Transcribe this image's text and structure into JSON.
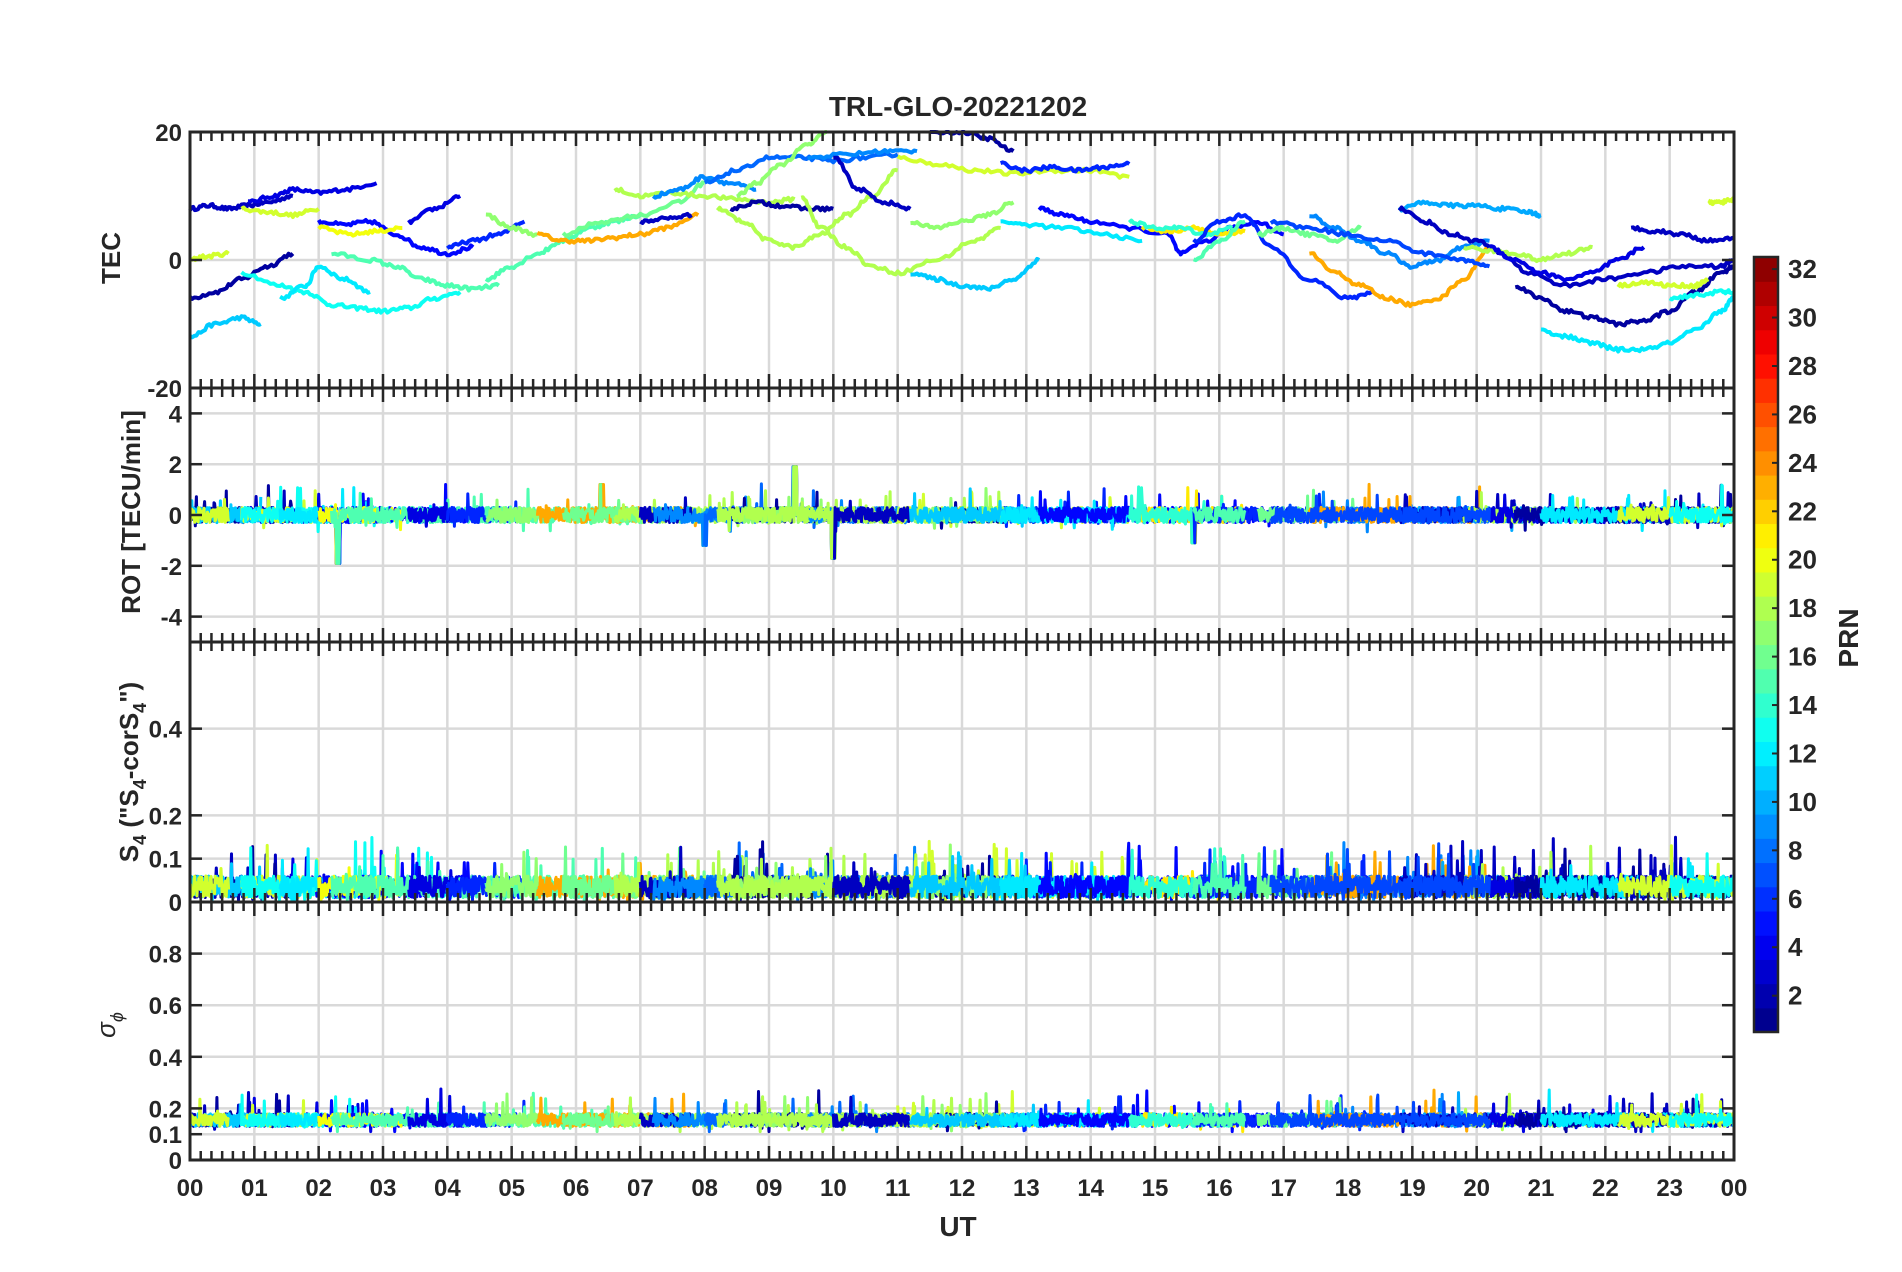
{
  "figure": {
    "title": "TRL-GLO-20221202",
    "xlabel": "UT"
  },
  "colorbar": {
    "label": "PRN",
    "range": [
      1,
      32
    ],
    "ticks": [
      "2",
      "4",
      "6",
      "8",
      "10",
      "12",
      "14",
      "16",
      "18",
      "20",
      "22",
      "24",
      "26",
      "28",
      "30",
      "32"
    ],
    "colormap": "jet",
    "levels": 32
  },
  "chart_data": [
    {
      "type": "line",
      "panel": "tec",
      "ylabel": "TEC",
      "ylim": [
        -20,
        20
      ],
      "yticks": [
        "-20",
        "0",
        "20"
      ],
      "xlim": [
        0,
        24
      ],
      "xticks": [
        "00",
        "01",
        "02",
        "03",
        "04",
        "05",
        "06",
        "07",
        "08",
        "09",
        "10",
        "11",
        "12",
        "13",
        "14",
        "15",
        "16",
        "17",
        "18",
        "19",
        "20",
        "21",
        "22",
        "23",
        "00"
      ],
      "series": [
        {
          "prn": 3,
          "x": [
            0.0,
            0.3,
            0.6,
            0.9,
            1.2,
            1.6
          ],
          "y": [
            8,
            8.5,
            8,
            8.5,
            9,
            10
          ]
        },
        {
          "prn": 2,
          "x": [
            0.0,
            0.4,
            0.8,
            1.2,
            1.6
          ],
          "y": [
            -6,
            -5,
            -3,
            -1,
            1
          ]
        },
        {
          "prn": 4,
          "x": [
            0.9,
            1.3,
            1.6,
            2.0,
            2.4,
            2.9
          ],
          "y": [
            9,
            10,
            11,
            10.5,
            11,
            12
          ]
        },
        {
          "prn": 11,
          "x": [
            0.0,
            0.4,
            0.8,
            1.1
          ],
          "y": [
            -12,
            -10,
            -9,
            -10
          ]
        },
        {
          "prn": 19,
          "x": [
            0.0,
            0.2,
            0.6
          ],
          "y": [
            0,
            0.5,
            1
          ]
        },
        {
          "prn": 19,
          "x": [
            0.8,
            1.2,
            1.6,
            2.0
          ],
          "y": [
            8,
            7.5,
            7,
            8
          ]
        },
        {
          "prn": 13,
          "x": [
            0.8,
            1.4,
            1.8,
            2.2,
            2.6,
            3.0,
            3.4,
            3.8,
            4.2
          ],
          "y": [
            -2,
            -4,
            -5,
            -7,
            -7.5,
            -8,
            -7.5,
            -6,
            -5
          ]
        },
        {
          "prn": 12,
          "x": [
            1.4,
            1.8,
            2.0,
            2.4,
            2.8
          ],
          "y": [
            -6,
            -4,
            -1,
            -3,
            -5
          ]
        },
        {
          "prn": 5,
          "x": [
            2.0,
            2.4,
            2.8,
            3.2,
            3.6,
            4.0,
            4.4
          ],
          "y": [
            6,
            5.5,
            6,
            4,
            2,
            1,
            2
          ]
        },
        {
          "prn": 20,
          "x": [
            2.0,
            2.5,
            2.9,
            3.3
          ],
          "y": [
            5,
            4,
            4.5,
            5
          ]
        },
        {
          "prn": 15,
          "x": [
            2.2,
            2.8,
            3.2,
            3.6,
            4.0,
            4.4,
            4.8
          ],
          "y": [
            1,
            0,
            -1,
            -3,
            -4,
            -4.5,
            -4
          ]
        },
        {
          "prn": 4,
          "x": [
            3.4,
            3.8,
            4.2
          ],
          "y": [
            6,
            8,
            10
          ]
        },
        {
          "prn": 6,
          "x": [
            4.0,
            4.4,
            4.8,
            5.2
          ],
          "y": [
            2,
            3,
            4,
            6
          ]
        },
        {
          "prn": 15,
          "x": [
            4.6,
            5.0,
            5.4,
            5.8,
            6.2,
            6.6,
            7.0
          ],
          "y": [
            -3,
            -1,
            1,
            3,
            5,
            6,
            7
          ]
        },
        {
          "prn": 17,
          "x": [
            4.6,
            5.0,
            5.4
          ],
          "y": [
            7,
            5,
            4
          ]
        },
        {
          "prn": 23,
          "x": [
            5.4,
            5.8,
            6.2,
            6.6,
            7.0,
            7.4,
            7.9
          ],
          "y": [
            4,
            3,
            3,
            3.5,
            4,
            5,
            7
          ]
        },
        {
          "prn": 16,
          "x": [
            5.8,
            6.4,
            7.0,
            7.6,
            8.0
          ],
          "y": [
            4,
            6,
            7,
            9,
            12
          ]
        },
        {
          "prn": 18,
          "x": [
            6.6,
            7.0,
            7.5,
            8.0,
            8.5,
            9.0,
            9.4
          ],
          "y": [
            11,
            10,
            10.5,
            10,
            9.5,
            9,
            9.5
          ]
        },
        {
          "prn": 3,
          "x": [
            7.0,
            7.4,
            7.8
          ],
          "y": [
            6,
            6.5,
            7
          ]
        },
        {
          "prn": 9,
          "x": [
            7.2,
            7.6,
            8.0,
            8.4,
            8.8
          ],
          "y": [
            10,
            11,
            13,
            12,
            11
          ]
        },
        {
          "prn": 8,
          "x": [
            8.0,
            8.5,
            9.0,
            9.5,
            10.0,
            10.5,
            11.0
          ],
          "y": [
            12,
            14,
            16,
            16,
            15.5,
            16,
            16.5
          ]
        },
        {
          "prn": 2,
          "x": [
            8.4,
            8.8,
            9.2,
            9.6,
            10.0
          ],
          "y": [
            8,
            9,
            8.5,
            8,
            8
          ]
        },
        {
          "prn": 17,
          "x": [
            8.5,
            8.8,
            9.2,
            9.6,
            9.9
          ],
          "y": [
            10,
            12,
            15,
            18,
            20
          ]
        },
        {
          "prn": 18,
          "x": [
            8.2,
            8.6,
            9.0,
            9.4,
            9.8,
            10.2,
            10.6,
            11.0
          ],
          "y": [
            8,
            6,
            3,
            2,
            4,
            7,
            10,
            14
          ]
        },
        {
          "prn": 9,
          "x": [
            9.6,
            10.2,
            10.8,
            11.3
          ],
          "y": [
            16,
            16.5,
            17,
            17
          ]
        },
        {
          "prn": 18,
          "x": [
            9.5,
            9.8,
            10.2,
            10.6,
            11.0,
            11.6,
            12.2,
            12.6
          ],
          "y": [
            10,
            5,
            2,
            -1,
            -2,
            0,
            3,
            5
          ]
        },
        {
          "prn": 19,
          "x": [
            11.0,
            11.6,
            12.2,
            12.8,
            13.4,
            14.0,
            14.6
          ],
          "y": [
            16,
            15,
            14,
            13.5,
            14,
            14,
            13
          ]
        },
        {
          "prn": 3,
          "x": [
            10.0,
            10.4,
            10.8,
            11.2
          ],
          "y": [
            16,
            11,
            9,
            8
          ]
        },
        {
          "prn": 2,
          "x": [
            11.5,
            12.0,
            12.4,
            12.8
          ],
          "y": [
            20,
            20,
            19,
            17
          ]
        },
        {
          "prn": 6,
          "x": [
            12.6,
            13.0,
            13.4,
            13.8,
            14.2,
            14.6
          ],
          "y": [
            15,
            14,
            14.5,
            14,
            14.5,
            15
          ]
        },
        {
          "prn": 17,
          "x": [
            11.2,
            11.6,
            12.0,
            12.4,
            12.8
          ],
          "y": [
            6,
            5,
            6,
            7,
            9
          ]
        },
        {
          "prn": 11,
          "x": [
            11.2,
            11.6,
            12.0,
            12.4,
            12.8,
            13.2
          ],
          "y": [
            -2,
            -3,
            -4,
            -4.5,
            -3,
            0
          ]
        },
        {
          "prn": 12,
          "x": [
            12.6,
            13.0,
            13.6,
            14.2,
            14.8
          ],
          "y": [
            6,
            5.5,
            5,
            4,
            3
          ]
        },
        {
          "prn": 5,
          "x": [
            13.2,
            13.6,
            14.0,
            14.6,
            15.2,
            15.4,
            15.8,
            16.2,
            16.6,
            17.0
          ],
          "y": [
            8,
            7,
            6,
            5,
            4,
            1,
            3,
            5,
            6,
            4
          ]
        },
        {
          "prn": 21,
          "x": [
            14.8,
            15.2,
            15.6,
            16.0,
            16.4
          ],
          "y": [
            5,
            4.5,
            5,
            4,
            4.5
          ]
        },
        {
          "prn": 14,
          "x": [
            14.6,
            15.0,
            15.4,
            15.8,
            16.2
          ],
          "y": [
            6,
            5,
            5,
            4,
            5
          ]
        },
        {
          "prn": 6,
          "x": [
            15.6,
            16.0,
            16.4,
            16.8,
            17.4,
            18.0,
            18.4
          ],
          "y": [
            3,
            6,
            7,
            2,
            -3,
            -6,
            -5
          ]
        },
        {
          "prn": 15,
          "x": [
            15.6,
            16.0,
            16.4
          ],
          "y": [
            0,
            3,
            6
          ]
        },
        {
          "prn": 16,
          "x": [
            16.6,
            17.0,
            17.4,
            17.8,
            18.2
          ],
          "y": [
            4,
            5,
            4,
            3,
            5
          ]
        },
        {
          "prn": 9,
          "x": [
            17.4,
            17.8,
            18.2,
            18.6,
            19.0,
            19.4,
            19.8,
            20.2
          ],
          "y": [
            7,
            5,
            3,
            1,
            -1,
            0,
            2,
            3
          ]
        },
        {
          "prn": 23,
          "x": [
            17.4,
            17.8,
            18.2,
            18.6,
            19.0,
            19.4,
            19.8,
            20.2
          ],
          "y": [
            1,
            -2,
            -4,
            -6,
            -7,
            -6,
            -3,
            2
          ]
        },
        {
          "prn": 10,
          "x": [
            18.8,
            19.2,
            19.6,
            20.0,
            20.4,
            20.8,
            21.0
          ],
          "y": [
            8,
            9,
            8.5,
            8.5,
            8,
            7.5,
            7
          ]
        },
        {
          "prn": 3,
          "x": [
            18.8,
            19.2,
            19.6,
            20.0,
            20.4,
            20.8,
            21.4,
            22.0,
            22.6,
            23.2,
            23.8,
            24.0
          ],
          "y": [
            8,
            6,
            4,
            3,
            1,
            -2,
            -4,
            -3,
            -2,
            -1,
            -1,
            0
          ]
        },
        {
          "prn": 18,
          "x": [
            19.8,
            20.2,
            20.6,
            21.0,
            21.4,
            21.8
          ],
          "y": [
            2,
            1.5,
            1,
            0,
            1,
            2
          ]
        },
        {
          "prn": 4,
          "x": [
            20.2,
            20.6,
            21.0,
            21.4,
            21.8,
            22.2,
            22.6
          ],
          "y": [
            2,
            0,
            -2,
            -3,
            -2,
            0,
            2
          ]
        },
        {
          "prn": 7,
          "x": [
            16.8,
            17.4,
            18.0,
            18.6,
            19.2,
            19.8,
            20.2
          ],
          "y": [
            6,
            5,
            4,
            3,
            1,
            0,
            -1
          ]
        },
        {
          "prn": 2,
          "x": [
            20.6,
            21.0,
            21.4,
            21.8,
            22.2,
            22.6,
            23.0,
            23.4,
            23.8,
            24.0
          ],
          "y": [
            -4,
            -6,
            -8,
            -9,
            -10,
            -9.5,
            -8,
            -5,
            -2,
            -1
          ]
        },
        {
          "prn": 12,
          "x": [
            21.0,
            21.4,
            21.8,
            22.2,
            22.6,
            23.0,
            23.4,
            23.8,
            24.0
          ],
          "y": [
            -11,
            -12,
            -13,
            -14,
            -14,
            -13,
            -11,
            -8,
            -6
          ]
        },
        {
          "prn": 3,
          "x": [
            22.4,
            22.8,
            23.2,
            23.6,
            24.0
          ],
          "y": [
            5,
            4.5,
            4,
            3,
            3.5
          ]
        },
        {
          "prn": 19,
          "x": [
            22.2,
            22.6,
            23.0,
            23.4,
            23.6
          ],
          "y": [
            -4,
            -3.5,
            -4,
            -4,
            -3
          ]
        },
        {
          "prn": 19,
          "x": [
            23.6,
            23.8,
            24.0
          ],
          "y": [
            9,
            9,
            9.5
          ]
        },
        {
          "prn": 13,
          "x": [
            23.0,
            23.4,
            23.8,
            24.0
          ],
          "y": [
            -6,
            -5.5,
            -5,
            -5
          ]
        }
      ]
    },
    {
      "type": "line",
      "panel": "rot",
      "ylabel": "ROT [TECU/min]",
      "ylim": [
        -5,
        5
      ],
      "yticks": [
        "-4",
        "-2",
        "0",
        "2",
        "4"
      ],
      "series_note": "High-frequency noise around 0, amplitude approximately ±1 with peaks near ±2",
      "peaks": [
        {
          "x": 2.3,
          "y": -1.9
        },
        {
          "x": 9.4,
          "y": 1.9
        },
        {
          "x": 10.0,
          "y": -1.7
        },
        {
          "x": 8.0,
          "y": -1.2
        },
        {
          "x": 6.4,
          "y": 1.2
        },
        {
          "x": 15.6,
          "y": -1.1
        }
      ]
    },
    {
      "type": "line",
      "panel": "s4",
      "ylabel_parts": [
        "S",
        "4",
        " (\"S",
        "4",
        "-corS",
        "4",
        "\")"
      ],
      "ylim": [
        0,
        0.6
      ],
      "yticks": [
        "0",
        "0.1",
        "0.2",
        "0.4"
      ],
      "series_note": "Noise band 0 to about 0.12 with spikes up to about 0.17"
    },
    {
      "type": "line",
      "panel": "sigma_phi",
      "ylabel_parts": [
        "σ",
        "ϕ"
      ],
      "ylim": [
        0,
        1
      ],
      "yticks": [
        "0",
        "0.1",
        "0.2",
        "0.4",
        "0.6",
        "0.8"
      ],
      "series_note": "Noise band about 0.12 to 0.22 with spikes up to about 0.35"
    }
  ]
}
